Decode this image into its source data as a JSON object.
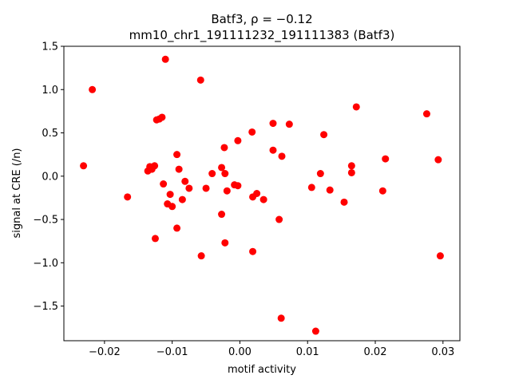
{
  "chart_data": {
    "type": "scatter",
    "title": [
      "Batf3, ρ = −0.12",
      "mm10_chr1_191111232_191111383 (Batf3)"
    ],
    "xlabel": "motif activity",
    "ylabel": "signal at CRE (/n)",
    "xlim": [
      -0.026,
      0.0325
    ],
    "ylim": [
      -1.9,
      1.5
    ],
    "xticks": [
      -0.02,
      -0.01,
      0.0,
      0.01,
      0.02,
      0.03
    ],
    "xtick_labels": [
      "−0.02",
      "−0.01",
      "0.00",
      "0.01",
      "0.02",
      "0.03"
    ],
    "yticks": [
      -1.5,
      -1.0,
      -0.5,
      0.0,
      0.5,
      1.0,
      1.5
    ],
    "ytick_labels": [
      "−1.5",
      "−1.0",
      "−0.5",
      "0.0",
      "0.5",
      "1.0",
      "1.5"
    ],
    "grid": false,
    "marker_color": "#ff0000",
    "points": [
      {
        "x": -0.0231,
        "y": 0.12
      },
      {
        "x": -0.0218,
        "y": 1.0
      },
      {
        "x": -0.0166,
        "y": -0.24
      },
      {
        "x": -0.0136,
        "y": 0.06
      },
      {
        "x": -0.0133,
        "y": 0.11
      },
      {
        "x": -0.013,
        "y": 0.08
      },
      {
        "x": -0.0126,
        "y": 0.12
      },
      {
        "x": -0.0125,
        "y": -0.72
      },
      {
        "x": -0.0123,
        "y": 0.65
      },
      {
        "x": -0.0119,
        "y": 0.66
      },
      {
        "x": -0.0115,
        "y": 0.68
      },
      {
        "x": -0.0113,
        "y": -0.09
      },
      {
        "x": -0.011,
        "y": 1.35
      },
      {
        "x": -0.0107,
        "y": -0.32
      },
      {
        "x": -0.0103,
        "y": -0.21
      },
      {
        "x": -0.01,
        "y": -0.35
      },
      {
        "x": -0.0093,
        "y": 0.25
      },
      {
        "x": -0.0093,
        "y": -0.6
      },
      {
        "x": -0.009,
        "y": 0.08
      },
      {
        "x": -0.0085,
        "y": -0.27
      },
      {
        "x": -0.0081,
        "y": -0.06
      },
      {
        "x": -0.0075,
        "y": -0.14
      },
      {
        "x": -0.0058,
        "y": 1.11
      },
      {
        "x": -0.0057,
        "y": -0.92
      },
      {
        "x": -0.005,
        "y": -0.14
      },
      {
        "x": -0.0041,
        "y": 0.03
      },
      {
        "x": -0.0027,
        "y": 0.1
      },
      {
        "x": -0.0027,
        "y": -0.44
      },
      {
        "x": -0.0023,
        "y": 0.33
      },
      {
        "x": -0.0022,
        "y": 0.03
      },
      {
        "x": -0.0022,
        "y": -0.77
      },
      {
        "x": -0.0019,
        "y": -0.17
      },
      {
        "x": -0.0008,
        "y": -0.1
      },
      {
        "x": -0.0003,
        "y": 0.41
      },
      {
        "x": -0.0003,
        "y": -0.11
      },
      {
        "x": 0.0018,
        "y": 0.51
      },
      {
        "x": 0.0019,
        "y": -0.24
      },
      {
        "x": 0.0019,
        "y": -0.87
      },
      {
        "x": 0.0025,
        "y": -0.2
      },
      {
        "x": 0.0035,
        "y": -0.27
      },
      {
        "x": 0.0049,
        "y": 0.61
      },
      {
        "x": 0.0049,
        "y": 0.3
      },
      {
        "x": 0.0058,
        "y": -0.5
      },
      {
        "x": 0.0062,
        "y": 0.23
      },
      {
        "x": 0.0061,
        "y": -1.64
      },
      {
        "x": 0.0073,
        "y": 0.6
      },
      {
        "x": 0.0106,
        "y": -0.13
      },
      {
        "x": 0.0112,
        "y": -1.79
      },
      {
        "x": 0.0119,
        "y": 0.03
      },
      {
        "x": 0.0124,
        "y": 0.48
      },
      {
        "x": 0.0133,
        "y": -0.16
      },
      {
        "x": 0.0154,
        "y": -0.3
      },
      {
        "x": 0.0165,
        "y": 0.12
      },
      {
        "x": 0.0165,
        "y": 0.04
      },
      {
        "x": 0.0172,
        "y": 0.8
      },
      {
        "x": 0.0211,
        "y": -0.17
      },
      {
        "x": 0.0215,
        "y": 0.2
      },
      {
        "x": 0.0276,
        "y": 0.72
      },
      {
        "x": 0.0293,
        "y": 0.19
      },
      {
        "x": 0.0296,
        "y": -0.92
      }
    ]
  }
}
